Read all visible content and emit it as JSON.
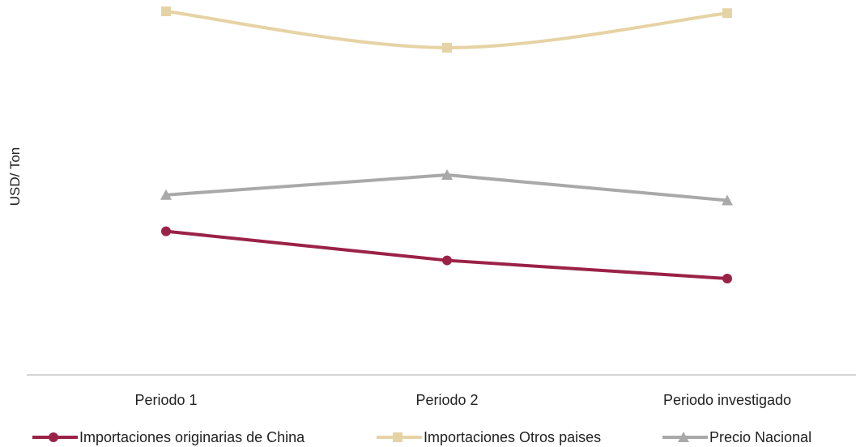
{
  "chart_data": {
    "type": "line",
    "title": "",
    "xlabel": "",
    "ylabel": "USD/ Ton",
    "categories": [
      "Periodo 1",
      "Periodo 2",
      "Periodo investigado"
    ],
    "ylim": [
      0,
      100
    ],
    "grid": false,
    "legend_position": "bottom",
    "series": [
      {
        "name": "Importaciones originarias de China",
        "values": [
          39.5,
          31.5,
          26.5
        ],
        "color": "#9b2247",
        "marker": "circle"
      },
      {
        "name": "Importaciones Otros paises",
        "values": [
          100,
          90,
          99.5
        ],
        "color": "#e6d3a5",
        "marker": "square"
      },
      {
        "name": "Precio Nacional",
        "values": [
          49.5,
          55,
          48
        ],
        "color": "#a9a9a9",
        "marker": "triangle"
      }
    ]
  }
}
